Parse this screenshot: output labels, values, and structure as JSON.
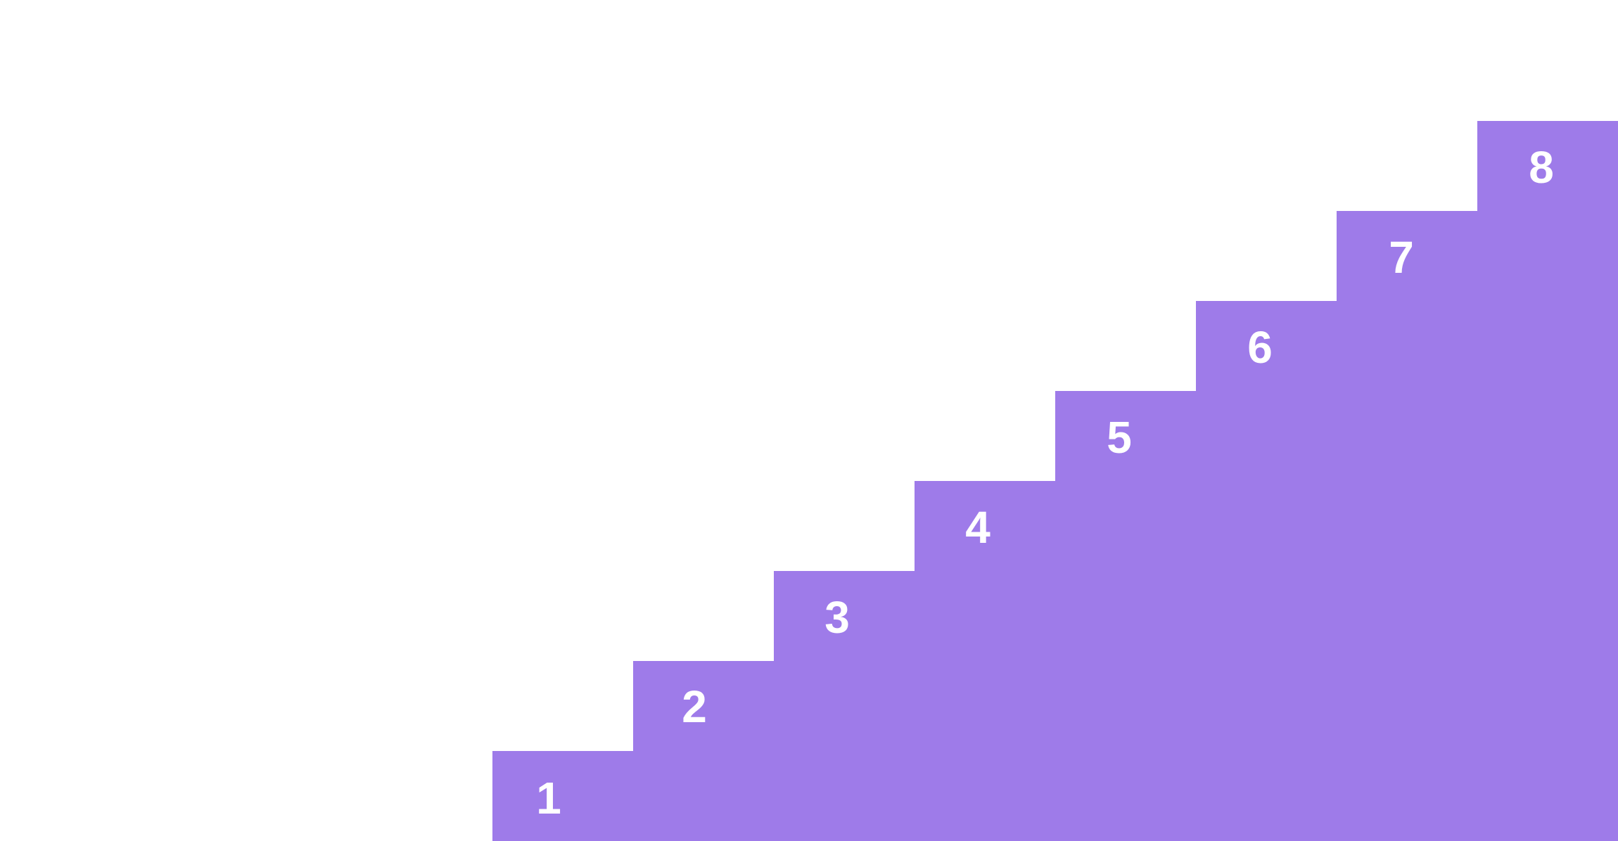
{
  "colors": {
    "step_fill": "#9e7be9",
    "label": "#ffffff",
    "background": "#ffffff"
  },
  "steps": [
    {
      "label": "1"
    },
    {
      "label": "2"
    },
    {
      "label": "3"
    },
    {
      "label": "4"
    },
    {
      "label": "5"
    },
    {
      "label": "6"
    },
    {
      "label": "7"
    },
    {
      "label": "8"
    }
  ]
}
